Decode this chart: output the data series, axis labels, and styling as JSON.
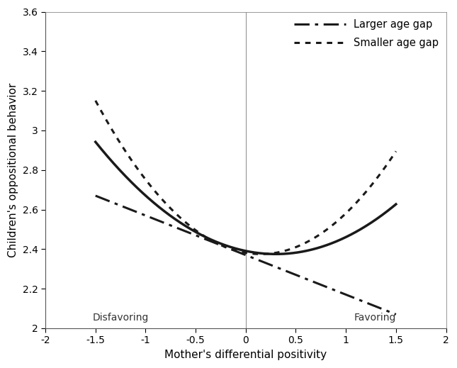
{
  "xlabel": "Mother's differential positivity",
  "ylabel": "Children's oppositional behavior",
  "xlim": [
    -2,
    2
  ],
  "ylim": [
    2,
    3.6
  ],
  "xticks": [
    -2,
    -1.5,
    -1,
    -0.5,
    0,
    0.5,
    1,
    1.5,
    2
  ],
  "xticklabels": [
    "-2",
    "-1.5",
    "-1",
    "-0.5",
    "0",
    "0.5",
    "1",
    "1.5",
    "2"
  ],
  "yticks": [
    2,
    2.2,
    2.4,
    2.6,
    2.8,
    3,
    3.2,
    3.4,
    3.6
  ],
  "yticklabels": [
    "2",
    "2.2",
    "2.4",
    "2.6",
    "2.8",
    "3",
    "3.2",
    "3.4",
    "3.6"
  ],
  "vline_x": 0,
  "disfavoring_label": "Disfavoring",
  "disfavoring_x": -1.53,
  "disfavoring_y": 2.03,
  "favoring_label": "Favoring",
  "favoring_x": 1.08,
  "favoring_y": 2.03,
  "legend_larger": "Larger age gap",
  "legend_smaller": "Smaller age gap",
  "x_start": -1.5,
  "x_end": 1.5,
  "background_color": "#ffffff",
  "line_color": "#1a1a1a",
  "solid_a": 0.175,
  "solid_b": 0.3,
  "solid_c": 2.375,
  "dotted_a": 0.285,
  "dotted_b": 0.15,
  "dotted_c": 2.375,
  "dashdot_slope": -0.2,
  "dashdot_intercept": 2.37
}
